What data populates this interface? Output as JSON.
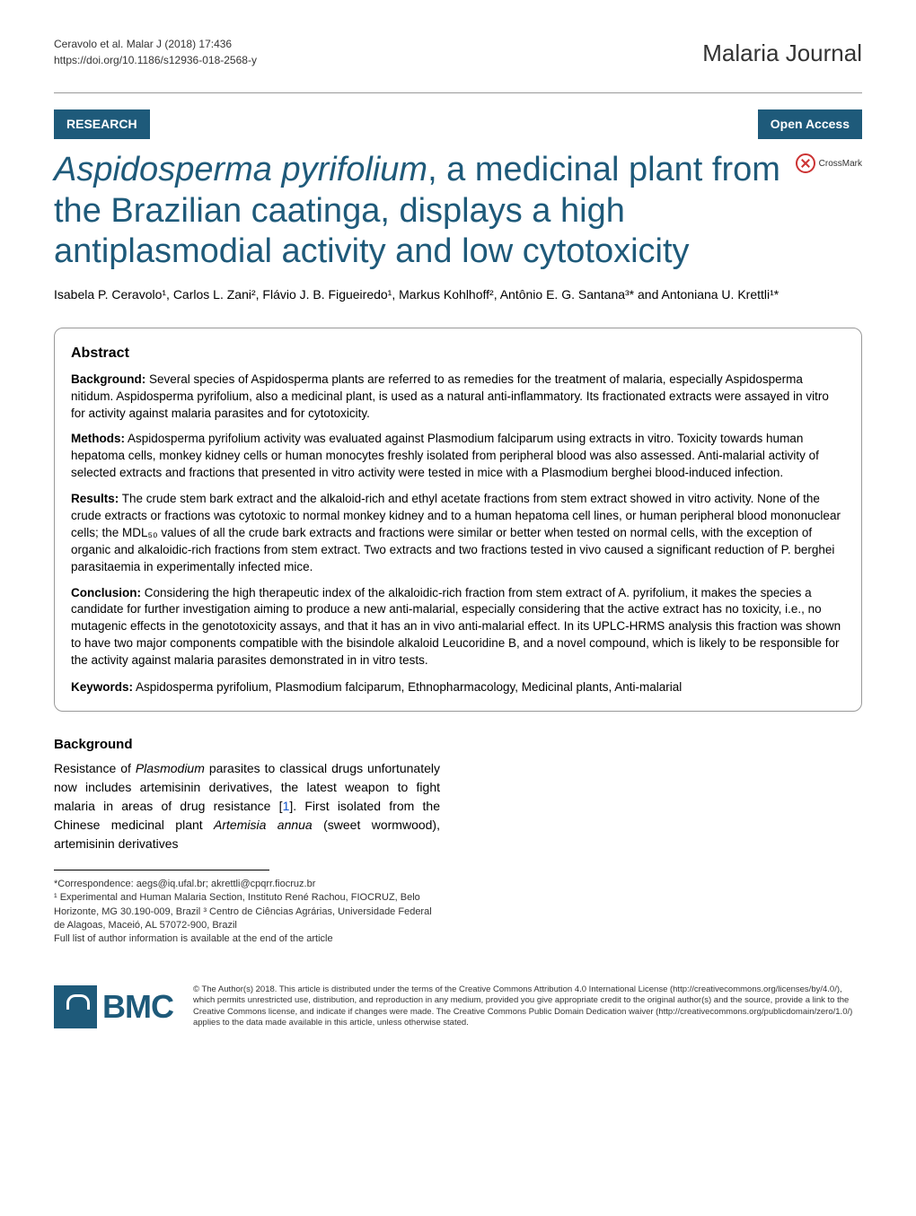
{
  "header": {
    "citation": "Ceravolo et al. Malar J          (2018) 17:436",
    "doi": "https://doi.org/10.1186/s12936-018-2568-y",
    "journal_name": "Malaria Journal"
  },
  "badges": {
    "research": "RESEARCH",
    "open_access": "Open Access",
    "crossmark": "CrossMark"
  },
  "title_parts": {
    "italic": "Aspidosperma pyrifolium",
    "rest": ", a medicinal plant from the Brazilian caatinga, displays a high antiplasmodial activity and low cytotoxicity"
  },
  "authors": "Isabela P. Ceravolo¹, Carlos L. Zani², Flávio J. B. Figueiredo¹, Markus Kohlhoff², Antônio E. G. Santana³* and Antoniana U. Krettli¹*",
  "abstract": {
    "heading": "Abstract",
    "background_label": "Background:",
    "background": " Several species of Aspidosperma plants are referred to as remedies for the treatment of malaria, especially Aspidosperma nitidum. Aspidosperma pyrifolium, also a medicinal plant, is used as a natural anti-inflammatory. Its fractionated extracts were assayed in vitro for activity against malaria parasites and for cytotoxicity.",
    "methods_label": "Methods:",
    "methods": " Aspidosperma pyrifolium activity was evaluated against Plasmodium falciparum using extracts in vitro. Toxicity towards human hepatoma cells, monkey kidney cells or human monocytes freshly isolated from peripheral blood was also assessed. Anti-malarial activity of selected extracts and fractions that presented in vitro activity were tested in mice with a Plasmodium berghei blood-induced infection.",
    "results_label": "Results:",
    "results": " The crude stem bark extract and the alkaloid-rich and ethyl acetate fractions from stem extract showed in vitro activity. None of the crude extracts or fractions was cytotoxic to normal monkey kidney and to a human hepatoma cell lines, or human peripheral blood mononuclear cells; the MDL₅₀ values of all the crude bark extracts and fractions were similar or better when tested on normal cells, with the exception of organic and alkaloidic-rich fractions from stem extract. Two extracts and two fractions tested in vivo caused a significant reduction of P. berghei parasitaemia in experimentally infected mice.",
    "conclusion_label": "Conclusion:",
    "conclusion": " Considering the high therapeutic index of the alkaloidic-rich fraction from stem extract of A. pyrifolium, it makes the species a candidate for further investigation aiming to produce a new anti-malarial, especially considering that the active extract has no toxicity, i.e., no mutagenic effects in the genototoxicity assays, and that it has an in vivo anti-malarial effect. In its UPLC-HRMS analysis this fraction was shown to have two major components compatible with the bisindole alkaloid Leucoridine B, and a novel compound, which is likely to be responsible for the activity against malaria parasites demonstrated in in vitro tests.",
    "keywords_label": "Keywords:",
    "keywords": " Aspidosperma pyrifolium, Plasmodium falciparum, Ethnopharmacology, Medicinal plants, Anti-malarial"
  },
  "background": {
    "heading": "Background",
    "text_pre": "Resistance of ",
    "italic1": "Plasmodium",
    "text_mid1": " parasites to classical drugs unfortunately now includes artemisinin derivatives, the latest weapon to fight malaria in areas of drug resistance [",
    "ref": "1",
    "text_mid2": "]. First isolated from the Chinese medicinal plant ",
    "italic2": "Artemisia annua",
    "text_post": " (sweet wormwood), artemisinin derivatives"
  },
  "footnote": {
    "correspondence": "*Correspondence:  aegs@iq.ufal.br; akrettli@cpqrr.fiocruz.br",
    "affil1": "¹ Experimental and Human Malaria Section, Instituto René Rachou, FIOCRUZ, Belo Horizonte, MG 30.190-009, Brazil",
    "affil3": "³ Centro de Ciências Agrárias, Universidade Federal de Alagoas, Maceió, AL 57072-900, Brazil",
    "full_list": "Full list of author information is available at the end of the article"
  },
  "footer": {
    "bmc": "BMC",
    "license": "© The Author(s) 2018. This article is distributed under the terms of the Creative Commons Attribution 4.0 International License (http://creativecommons.org/licenses/by/4.0/), which permits unrestricted use, distribution, and reproduction in any medium, provided you give appropriate credit to the original author(s) and the source, provide a link to the Creative Commons license, and indicate if changes were made. The Creative Commons Public Domain Dedication waiver (http://creativecommons.org/publicdomain/zero/1.0/) applies to the data made available in this article, unless otherwise stated."
  },
  "colors": {
    "brand": "#1e5a7a",
    "link": "#1155cc",
    "crossmark_red": "#cc3333",
    "background": "#ffffff",
    "text": "#000000"
  },
  "typography": {
    "title_fontsize": 38,
    "journal_fontsize": 26,
    "body_fontsize": 14,
    "abstract_fontsize": 13.5,
    "footnote_fontsize": 11,
    "license_fontsize": 9.5
  }
}
